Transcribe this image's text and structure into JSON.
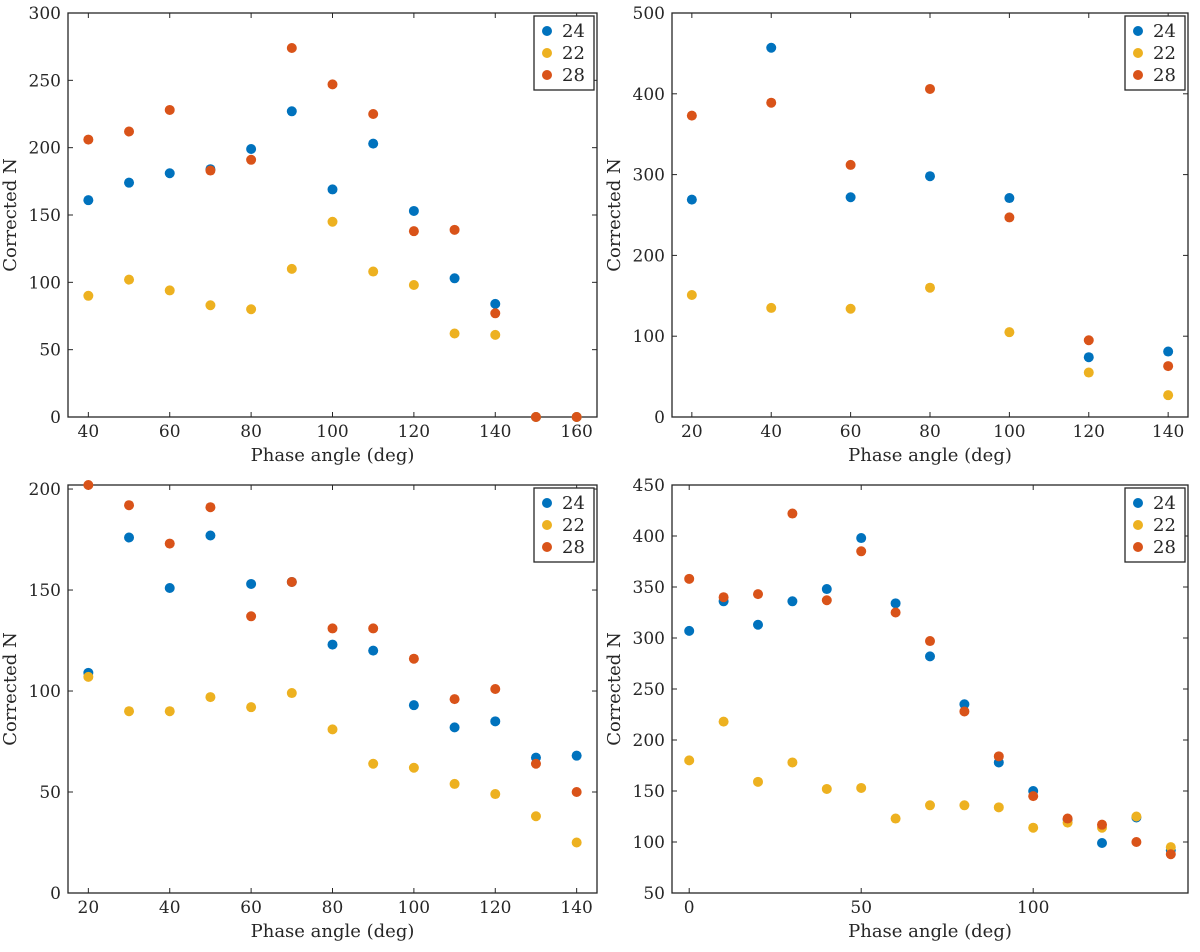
{
  "colors": {
    "s24": "#0072bd",
    "s22": "#edb120",
    "s28": "#d95319"
  },
  "chart_data": [
    {
      "type": "scatter",
      "xlabel": "Phase angle (deg)",
      "ylabel": "Corrected N",
      "xlim": [
        35,
        165
      ],
      "ylim": [
        0,
        300
      ],
      "xticks": [
        40,
        60,
        80,
        100,
        120,
        140,
        160
      ],
      "yticks": [
        0,
        50,
        100,
        150,
        200,
        250,
        300
      ],
      "legend": "top-right",
      "series": [
        {
          "name": "24",
          "color": "#0072bd",
          "x": [
            40,
            50,
            60,
            70,
            80,
            90,
            100,
            110,
            120,
            130,
            140,
            150,
            160
          ],
          "y": [
            161,
            174,
            181,
            184,
            199,
            227,
            169,
            203,
            153,
            103,
            84,
            0,
            0
          ]
        },
        {
          "name": "22",
          "color": "#edb120",
          "x": [
            40,
            50,
            60,
            70,
            80,
            90,
            100,
            110,
            120,
            130,
            140,
            150,
            160
          ],
          "y": [
            90,
            102,
            94,
            83,
            80,
            110,
            145,
            108,
            98,
            62,
            61,
            0,
            0
          ]
        },
        {
          "name": "28",
          "color": "#d95319",
          "x": [
            40,
            50,
            60,
            70,
            80,
            90,
            100,
            110,
            120,
            130,
            140,
            150,
            160
          ],
          "y": [
            206,
            212,
            228,
            183,
            191,
            274,
            247,
            225,
            138,
            139,
            77,
            0,
            0
          ]
        }
      ]
    },
    {
      "type": "scatter",
      "xlabel": "Phase angle (deg)",
      "ylabel": "Corrected N",
      "xlim": [
        15,
        145
      ],
      "ylim": [
        0,
        500
      ],
      "xticks": [
        20,
        40,
        60,
        80,
        100,
        120,
        140
      ],
      "yticks": [
        0,
        100,
        200,
        300,
        400,
        500
      ],
      "legend": "top-right",
      "series": [
        {
          "name": "24",
          "color": "#0072bd",
          "x": [
            20,
            40,
            60,
            80,
            100,
            120,
            140
          ],
          "y": [
            269,
            457,
            272,
            298,
            271,
            74,
            81
          ]
        },
        {
          "name": "22",
          "color": "#edb120",
          "x": [
            20,
            40,
            60,
            80,
            100,
            120,
            140
          ],
          "y": [
            151,
            135,
            134,
            160,
            105,
            55,
            27
          ]
        },
        {
          "name": "28",
          "color": "#d95319",
          "x": [
            20,
            40,
            60,
            80,
            100,
            120,
            140
          ],
          "y": [
            373,
            389,
            312,
            406,
            247,
            95,
            63
          ]
        }
      ]
    },
    {
      "type": "scatter",
      "xlabel": "Phase angle (deg)",
      "ylabel": "Corrected N",
      "xlim": [
        15,
        145
      ],
      "ylim": [
        0,
        202
      ],
      "xticks": [
        20,
        40,
        60,
        80,
        100,
        120,
        140
      ],
      "yticks": [
        0,
        50,
        100,
        150,
        200
      ],
      "legend": "top-right",
      "series": [
        {
          "name": "24",
          "color": "#0072bd",
          "x": [
            20,
            30,
            40,
            50,
            60,
            70,
            80,
            90,
            100,
            110,
            120,
            130,
            140
          ],
          "y": [
            109,
            176,
            151,
            177,
            153,
            154,
            123,
            120,
            93,
            82,
            85,
            67,
            68
          ]
        },
        {
          "name": "22",
          "color": "#edb120",
          "x": [
            20,
            30,
            40,
            50,
            60,
            70,
            80,
            90,
            100,
            110,
            120,
            130,
            140
          ],
          "y": [
            107,
            90,
            90,
            97,
            92,
            99,
            81,
            64,
            62,
            54,
            49,
            38,
            25
          ]
        },
        {
          "name": "28",
          "color": "#d95319",
          "x": [
            20,
            30,
            40,
            50,
            60,
            70,
            80,
            90,
            100,
            110,
            120,
            130,
            140
          ],
          "y": [
            202,
            192,
            173,
            191,
            137,
            154,
            131,
            131,
            116,
            96,
            101,
            64,
            50
          ]
        }
      ]
    },
    {
      "type": "scatter",
      "xlabel": "Phase angle (deg)",
      "ylabel": "Corrected N",
      "xlim": [
        -5,
        145
      ],
      "ylim": [
        50,
        450
      ],
      "xticks": [
        0,
        50,
        100
      ],
      "yticks": [
        50,
        100,
        150,
        200,
        250,
        300,
        350,
        400,
        450
      ],
      "legend": "top-right",
      "series": [
        {
          "name": "24",
          "color": "#0072bd",
          "x": [
            0,
            10,
            20,
            30,
            40,
            50,
            60,
            70,
            80,
            90,
            100,
            110,
            120,
            130,
            140
          ],
          "y": [
            307,
            336,
            313,
            336,
            348,
            398,
            334,
            282,
            235,
            178,
            150,
            122,
            99,
            124,
            92
          ]
        },
        {
          "name": "22",
          "color": "#edb120",
          "x": [
            0,
            10,
            20,
            30,
            40,
            50,
            60,
            70,
            80,
            90,
            100,
            110,
            120,
            130,
            140
          ],
          "y": [
            180,
            218,
            159,
            178,
            152,
            153,
            123,
            136,
            136,
            134,
            114,
            119,
            114,
            125,
            95
          ]
        },
        {
          "name": "28",
          "color": "#d95319",
          "x": [
            0,
            10,
            20,
            30,
            40,
            50,
            60,
            70,
            80,
            90,
            100,
            110,
            120,
            130,
            140
          ],
          "y": [
            358,
            340,
            343,
            422,
            337,
            385,
            325,
            297,
            228,
            184,
            145,
            123,
            117,
            100,
            88
          ]
        }
      ]
    }
  ]
}
